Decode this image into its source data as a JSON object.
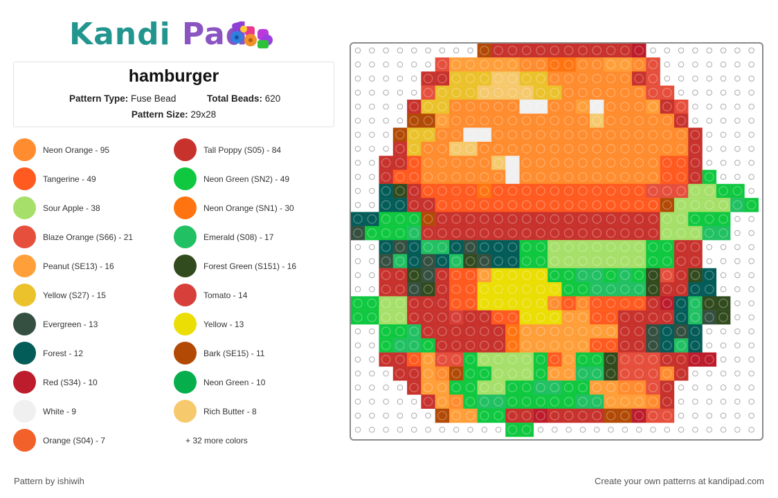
{
  "logo": {
    "part1": "Kandi",
    "part2": "Pad"
  },
  "pattern": {
    "title": "hamburger",
    "type_label": "Pattern Type:",
    "type_value": "Fuse Bead",
    "total_label": "Total Beads:",
    "total_value": "620",
    "size_label": "Pattern Size:",
    "size_value": "29x28"
  },
  "legend": [
    {
      "label": "Neon Orange - 95",
      "color": "#ff8c2e"
    },
    {
      "label": "Tall Poppy (S05) - 84",
      "color": "#c8322d"
    },
    {
      "label": "Tangerine - 49",
      "color": "#ff5a1f"
    },
    {
      "label": "Neon Green (SN2) - 49",
      "color": "#0fc840"
    },
    {
      "label": "Sour Apple - 38",
      "color": "#a6e06a"
    },
    {
      "label": "Neon Orange (SN1) - 30",
      "color": "#ff7410"
    },
    {
      "label": "Blaze Orange (S66) - 21",
      "color": "#e64f3c"
    },
    {
      "label": "Emerald (S08) - 17",
      "color": "#21c062"
    },
    {
      "label": "Peanut (SE13) - 16",
      "color": "#ff9f3a"
    },
    {
      "label": "Forest Green (S151) - 16",
      "color": "#324b1e"
    },
    {
      "label": "Yellow (S27) - 15",
      "color": "#ebc22c"
    },
    {
      "label": "Tomato - 14",
      "color": "#d7403a"
    },
    {
      "label": "Evergreen - 13",
      "color": "#355040"
    },
    {
      "label": "Yellow - 13",
      "color": "#ebde04"
    },
    {
      "label": "Forest - 12",
      "color": "#045c58"
    },
    {
      "label": "Bark (SE15) - 11",
      "color": "#b24a06"
    },
    {
      "label": "Red (S34) - 10",
      "color": "#bc1c2c"
    },
    {
      "label": "Neon Green - 10",
      "color": "#07ae4c"
    },
    {
      "label": "White - 9",
      "color": "#f0f0f0"
    },
    {
      "label": "Rich Butter - 8",
      "color": "#f5c96c"
    },
    {
      "label": "Orange (S04) - 7",
      "color": "#f26129"
    }
  ],
  "more_colors": "+ 32 more colors",
  "footer": {
    "left": "Pattern by ishiwih",
    "right": "Create your own patterns at kandipad.com"
  }
}
